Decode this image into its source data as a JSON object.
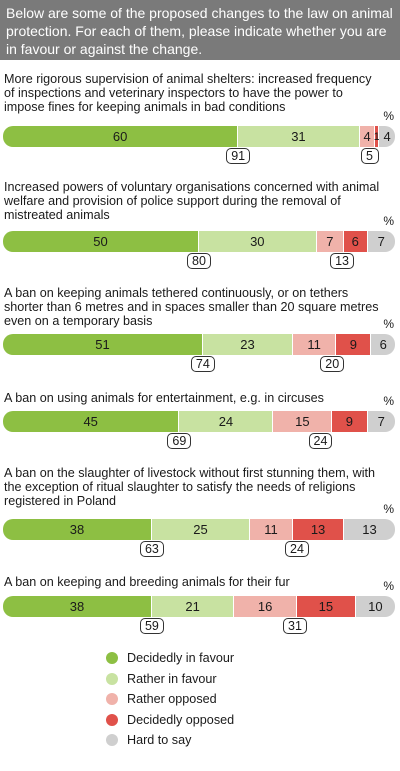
{
  "intro": "Below are some of the proposed changes to the law on animal protection. For each of them, please indicate whether you are in favour or against the change.",
  "unit": "%",
  "colors": {
    "decidedly_in_favour": "#8dbf43",
    "rather_in_favour": "#c8e2a1",
    "rather_opposed": "#f0b2aa",
    "decidedly_opposed": "#e0514a",
    "hard_to_say": "#cfcfcf"
  },
  "legend": [
    {
      "key": "decidedly_in_favour",
      "label": "Decidedly in favour"
    },
    {
      "key": "rather_in_favour",
      "label": "Rather in favour"
    },
    {
      "key": "rather_opposed",
      "label": "Rather opposed"
    },
    {
      "key": "decidedly_opposed",
      "label": "Decidedly opposed"
    },
    {
      "key": "hard_to_say",
      "label": "Hard to say"
    }
  ],
  "chart_data": {
    "type": "bar",
    "stacked": true,
    "orientation": "horizontal",
    "xlim": [
      0,
      100
    ],
    "unit": "%",
    "grid": false,
    "legend_position": "bottom",
    "series_names": [
      "Decidedly in favour",
      "Rather in favour",
      "Rather opposed",
      "Decidedly opposed",
      "Hard to say"
    ],
    "categories": [
      "More rigorous supervision of animal shelters: increased frequency of inspections and veterinary inspectors to have the power to impose fines for keeping animals in bad conditions",
      "Increased powers of voluntary organisations concerned with animal welfare and provision of police support during the removal of mistreated animals",
      "A ban on keeping animals tethered continuously, or on tethers shorter than 6 metres and in spaces smaller than 20 square metres even on a temporary basis",
      "A ban on using animals for entertainment, e.g. in circuses",
      "A ban on the slaughter of livestock without first stunning them, with the exception of ritual slaughter to satisfy the needs of religions registered in Poland",
      "A ban on keeping and breeding animals for their fur"
    ],
    "rows": [
      {
        "values": [
          60,
          31,
          4,
          1,
          4
        ],
        "labels": [
          "60",
          "31",
          "4",
          "1",
          "4"
        ],
        "in_favour_total": "91",
        "opposed_total": "5"
      },
      {
        "values": [
          50,
          30,
          7,
          6,
          7
        ],
        "labels": [
          "50",
          "30",
          "7",
          "6",
          "7"
        ],
        "in_favour_total": "80",
        "opposed_total": "13"
      },
      {
        "values": [
          51,
          23,
          11,
          9,
          6
        ],
        "labels": [
          "51",
          "23",
          "11",
          "9",
          "6"
        ],
        "in_favour_total": "74",
        "opposed_total": "20"
      },
      {
        "values": [
          45,
          24,
          15,
          9,
          7
        ],
        "labels": [
          "45",
          "24",
          "15",
          "9",
          "7"
        ],
        "in_favour_total": "69",
        "opposed_total": "24"
      },
      {
        "values": [
          38,
          25,
          11,
          13,
          13
        ],
        "labels": [
          "38",
          "25",
          "11",
          "13",
          "13"
        ],
        "in_favour_total": "63",
        "opposed_total": "24"
      },
      {
        "values": [
          38,
          21,
          16,
          15,
          10
        ],
        "labels": [
          "38",
          "21",
          "16",
          "15",
          "10"
        ],
        "in_favour_total": "59",
        "opposed_total": "31"
      }
    ]
  }
}
